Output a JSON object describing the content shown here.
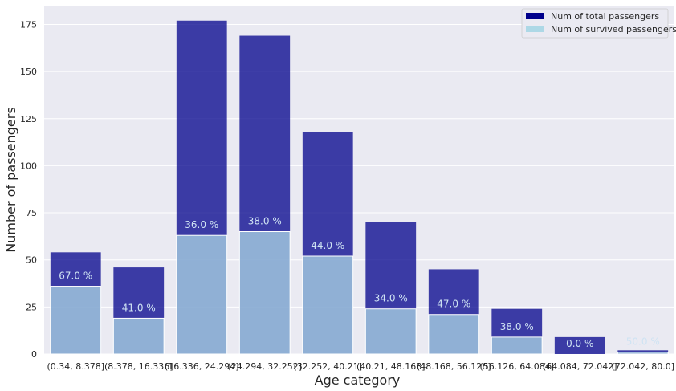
{
  "chart_data": {
    "type": "bar",
    "title": "",
    "xlabel": "Age category",
    "ylabel": "Number of passengers",
    "ylim": [
      0,
      185
    ],
    "yticks": [
      "0",
      "25",
      "50",
      "75",
      "100",
      "125",
      "150",
      "175"
    ],
    "grid": true,
    "legend_position": "top-right",
    "categories": [
      "(0.34, 8.378]",
      "(8.378, 16.336]",
      "(16.336, 24.294]",
      "(24.294, 32.252]",
      "(32.252, 40.21]",
      "(40.21, 48.168]",
      "(48.168, 56.126]",
      "(56.126, 64.084]",
      "(64.084, 72.042]",
      "(72.042, 80.0]"
    ],
    "series": [
      {
        "name": "Num of total passengers",
        "color": "#00008b",
        "values": [
          54,
          46,
          177,
          169,
          118,
          70,
          45,
          24,
          9,
          2
        ]
      },
      {
        "name": "Num of survived passengers",
        "color": "#add8e6",
        "values": [
          36,
          19,
          63,
          65,
          52,
          24,
          21,
          9,
          0,
          1
        ]
      }
    ],
    "annotations": [
      "67.0 %",
      "41.0 %",
      "36.0 %",
      "38.0 %",
      "44.0 %",
      "34.0 %",
      "47.0 %",
      "38.0 %",
      "0.0 %",
      "50.0 %"
    ]
  }
}
